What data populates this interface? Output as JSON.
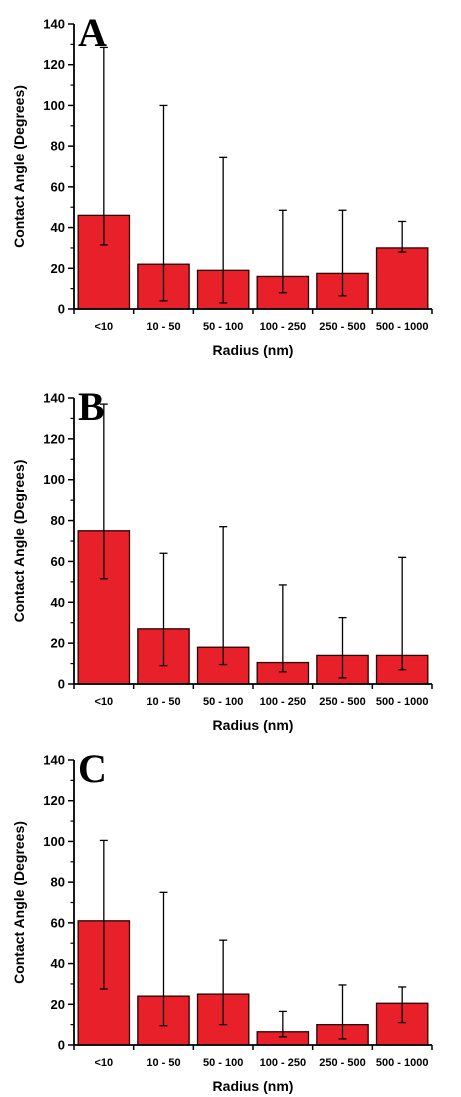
{
  "colors": {
    "bar_fill": "#e8202a",
    "bar_stroke": "#2a0000",
    "axis": "#000000"
  },
  "chart_data": [
    {
      "type": "bar",
      "panel_label": "A",
      "categories": [
        "<10",
        "10 - 50",
        "50 - 100",
        "100 - 250",
        "250 - 500",
        "500 - 1000"
      ],
      "values": [
        46,
        22,
        19,
        16,
        17.5,
        30
      ],
      "error_low": [
        31.5,
        4,
        3,
        8,
        6.5,
        28
      ],
      "error_high": [
        128.5,
        100,
        74.5,
        48.5,
        48.5,
        43
      ],
      "xlabel": "Radius (nm)",
      "ylabel": "Contact Angle (Degrees)",
      "ylim": [
        0,
        140
      ],
      "yticks": [
        0,
        20,
        40,
        60,
        80,
        100,
        120,
        140
      ],
      "ytick_labels": [
        "0",
        "20",
        "40",
        "60",
        "80",
        "100",
        "120",
        "140"
      ]
    },
    {
      "type": "bar",
      "panel_label": "B",
      "categories": [
        "<10",
        "10 - 50",
        "50 - 100",
        "100 - 250",
        "250 - 500",
        "500 - 1000"
      ],
      "values": [
        75,
        27,
        18,
        10.5,
        14,
        14
      ],
      "error_low": [
        51.5,
        9,
        9.5,
        6,
        3,
        7
      ],
      "error_high": [
        137,
        64,
        77,
        48.5,
        32.5,
        62
      ],
      "xlabel": "Radius (nm)",
      "ylabel": "Contact Angle (Degrees)",
      "ylim": [
        0,
        140
      ],
      "yticks": [
        0,
        20,
        40,
        60,
        80,
        100,
        120,
        140
      ],
      "ytick_labels": [
        "0",
        "20",
        "40",
        "60",
        "80",
        "100",
        "120",
        "140"
      ]
    },
    {
      "type": "bar",
      "panel_label": "C",
      "categories": [
        "<10",
        "10 - 50",
        "50 - 100",
        "100 - 250",
        "250 - 500",
        "500 - 1000"
      ],
      "values": [
        61,
        24,
        25,
        6.5,
        10,
        20.5
      ],
      "error_low": [
        27.5,
        9.5,
        10,
        4,
        3,
        11
      ],
      "error_high": [
        100.5,
        75,
        51.5,
        16.5,
        29.5,
        28.5
      ],
      "xlabel": "Radius (nm)",
      "ylabel": "Contact Angle (Degrees)",
      "ylim": [
        0,
        140
      ],
      "yticks": [
        0,
        20,
        40,
        60,
        80,
        100,
        120,
        140
      ],
      "ytick_labels": [
        "0",
        "20",
        "40",
        "60",
        "80",
        "100",
        "120",
        "140"
      ]
    }
  ]
}
